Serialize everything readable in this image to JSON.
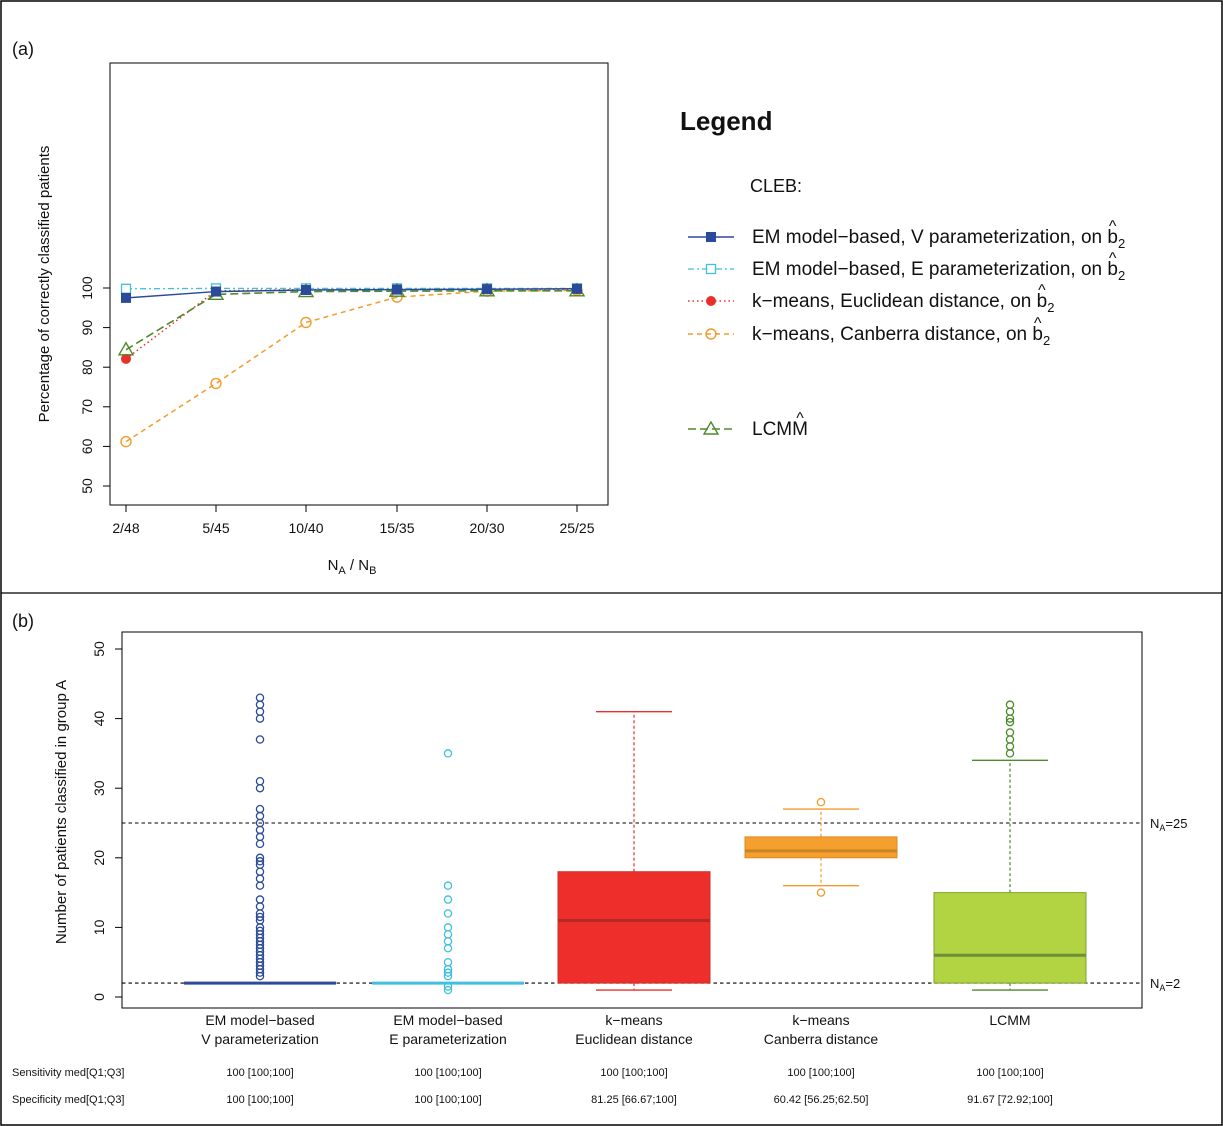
{
  "colors": {
    "em_v": "#2B4A9A",
    "em_e": "#3FC0DC",
    "km_euc": "#E8302B",
    "km_can": "#F39B2A",
    "lcmm": "#4E8A2C",
    "lcmm_fill": "#B2D342",
    "can_fill": "#F5A02E",
    "euc_fill": "#EE2E2B"
  },
  "chart_data": [
    {
      "panel": "(a)",
      "type": "line",
      "xlabel_main": "N",
      "xlabel_sub_a": "A",
      "xlabel_sep": " / N",
      "xlabel_sub_b": "B",
      "ylabel": "Percentage of correctly classified patients",
      "categories": [
        "2/48",
        "5/45",
        "10/40",
        "15/35",
        "20/30",
        "25/25"
      ],
      "ylim": [
        50,
        100
      ],
      "yticks": [
        "50",
        "60",
        "70",
        "80",
        "90",
        "100"
      ],
      "series": [
        {
          "key": "em_v",
          "name": "EM model−based, V parameterization, on b",
          "values": [
            97.5,
            99.1,
            99.5,
            99.6,
            99.7,
            99.8
          ]
        },
        {
          "key": "em_e",
          "name": "EM model−based, E parameterization, on b",
          "values": [
            99.8,
            99.9,
            99.9,
            99.9,
            99.9,
            99.9
          ]
        },
        {
          "key": "km_euc",
          "name": "k−means, Euclidean distance, on b",
          "values": [
            82.1,
            99.3,
            99.6,
            99.7,
            99.7,
            99.7
          ]
        },
        {
          "key": "km_can",
          "name": "k−means, Canberra distance, on b",
          "values": [
            61.2,
            75.9,
            91.3,
            97.7,
            99.2,
            99.4
          ]
        },
        {
          "key": "lcmm",
          "name": "LCMM",
          "values": [
            84.4,
            98.4,
            99.1,
            99.2,
            99.3,
            99.3
          ]
        }
      ],
      "legend": {
        "title": "Legend",
        "subtitle": "CLEB:",
        "hat_sub": "2",
        "hat": "^"
      }
    },
    {
      "panel": "(b)",
      "type": "box",
      "ylabel": "Number of patients classified in group A",
      "ylim": [
        0,
        50
      ],
      "yticks": [
        "0",
        "10",
        "20",
        "30",
        "40",
        "50"
      ],
      "reference_lines": [
        {
          "value": 25,
          "label_main": "N",
          "label_sub": "A",
          "label_eq": "=25"
        },
        {
          "value": 2,
          "label_main": "N",
          "label_sub": "A",
          "label_eq": "=2"
        }
      ],
      "groups": [
        {
          "key": "em_v",
          "label1": "EM model−based",
          "label2": "V parameterization",
          "q1": 2,
          "median": 2,
          "q3": 2,
          "whisker_low": 2,
          "whisker_high": 2,
          "outliers": [
            3,
            3.5,
            4,
            4.5,
            5,
            5.5,
            6,
            6.5,
            7,
            7.5,
            8,
            8.5,
            9,
            9.5,
            10,
            11,
            11.5,
            12,
            13,
            14,
            16,
            17,
            18,
            19,
            19.5,
            20,
            22,
            23,
            24,
            25,
            26,
            27,
            30,
            31,
            37,
            40,
            41,
            42,
            43
          ],
          "sensitivity": "100 [100;100]",
          "specificity": "100 [100;100]"
        },
        {
          "key": "em_e",
          "label1": "EM model−based",
          "label2": "E parameterization",
          "q1": 2,
          "median": 2,
          "q3": 2,
          "whisker_low": 2,
          "whisker_high": 2,
          "outliers": [
            1,
            1.5,
            3,
            3.5,
            4,
            5,
            7,
            8,
            9,
            10,
            12,
            14,
            16,
            35
          ],
          "sensitivity": "100 [100;100]",
          "specificity": "100 [100;100]"
        },
        {
          "key": "km_euc",
          "label1": "k−means",
          "label2": "Euclidean distance",
          "q1": 2,
          "median": 11,
          "q3": 18,
          "whisker_low": 1,
          "whisker_high": 41,
          "outliers": [],
          "sensitivity": "100 [100;100]",
          "specificity": "81.25 [66.67;100]"
        },
        {
          "key": "km_can",
          "label1": "k−means",
          "label2": "Canberra distance",
          "q1": 20,
          "median": 21,
          "q3": 23,
          "whisker_low": 16,
          "whisker_high": 27,
          "outliers": [
            15,
            28
          ],
          "sensitivity": "100 [100;100]",
          "specificity": "60.42 [56.25;62.50]"
        },
        {
          "key": "lcmm",
          "label1": "LCMM",
          "label2": "",
          "q1": 2,
          "median": 6,
          "q3": 15,
          "whisker_low": 1,
          "whisker_high": 34,
          "outliers": [
            35,
            36,
            37,
            38,
            39.5,
            40,
            41,
            42
          ],
          "sensitivity": "100 [100;100]",
          "specificity": "91.67 [72.92;100]"
        }
      ],
      "row_labels": {
        "sensitivity": "Sensitivity med[Q1;Q3]",
        "specificity": "Specificity med[Q1;Q3]"
      }
    }
  ]
}
